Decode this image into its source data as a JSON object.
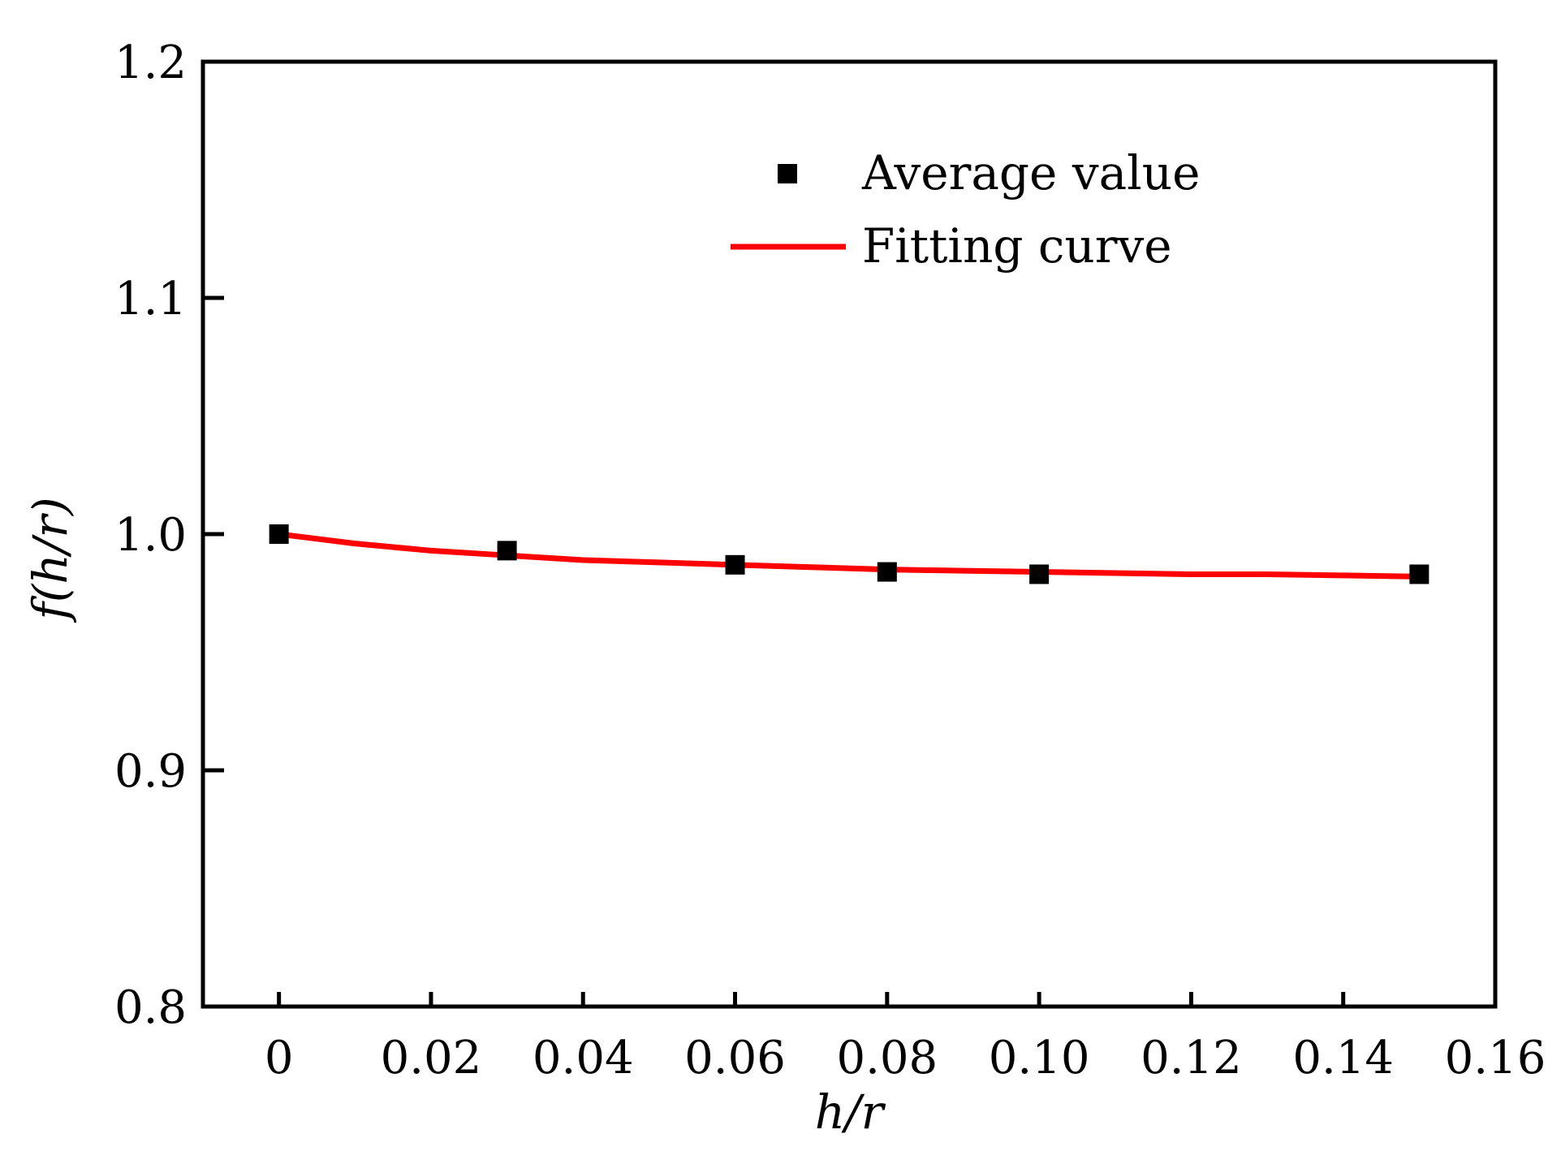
{
  "chart_data": {
    "type": "scatter",
    "xlabel": "h/r",
    "ylabel": "f(h/r)",
    "xlim": [
      -0.01,
      0.16
    ],
    "ylim": [
      0.8,
      1.2
    ],
    "x_ticks": [
      0,
      0.02,
      0.04,
      0.06,
      0.08,
      0.1,
      0.12,
      0.14,
      0.16
    ],
    "x_tick_labels": [
      "0",
      "0.02",
      "0.04",
      "0.06",
      "0.08",
      "0.10",
      "0.12",
      "0.14",
      "0.16"
    ],
    "y_ticks": [
      0.8,
      0.9,
      1.0,
      1.1,
      1.2
    ],
    "y_tick_labels": [
      "0.8",
      "0.9",
      "1.0",
      "1.1",
      "1.2"
    ],
    "grid": false,
    "legend_position": "top-right",
    "series": [
      {
        "name": "Average value",
        "kind": "scatter",
        "marker": "square",
        "color": "#000000",
        "x": [
          0,
          0.03,
          0.06,
          0.08,
          0.1,
          0.15
        ],
        "y": [
          1.0,
          0.993,
          0.987,
          0.984,
          0.983,
          0.983
        ]
      },
      {
        "name": "Fitting curve",
        "kind": "line",
        "color": "#ff0000",
        "x": [
          0,
          0.01,
          0.02,
          0.03,
          0.04,
          0.05,
          0.06,
          0.07,
          0.08,
          0.09,
          0.1,
          0.11,
          0.12,
          0.13,
          0.14,
          0.15
        ],
        "y": [
          1.0,
          0.996,
          0.993,
          0.991,
          0.989,
          0.988,
          0.987,
          0.986,
          0.985,
          0.9845,
          0.984,
          0.9835,
          0.983,
          0.983,
          0.9825,
          0.982
        ]
      }
    ]
  }
}
